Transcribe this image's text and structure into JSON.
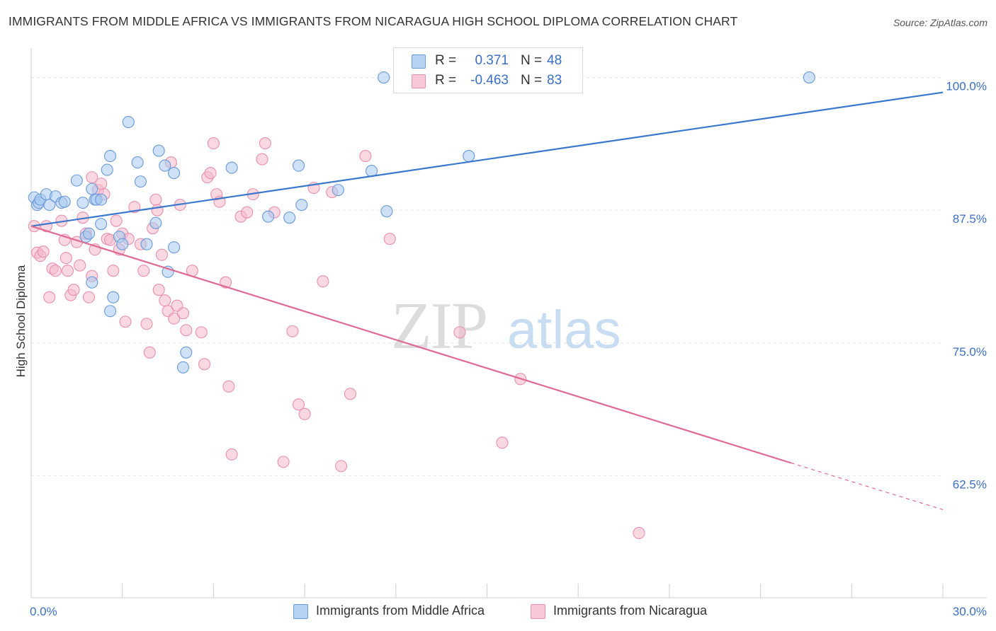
{
  "title": "IMMIGRANTS FROM MIDDLE AFRICA VS IMMIGRANTS FROM NICARAGUA HIGH SCHOOL DIPLOMA CORRELATION CHART",
  "source": "Source: ZipAtlas.com",
  "watermark": {
    "zip": "ZIP",
    "atlas": "atlas"
  },
  "legend": {
    "blue": {
      "r_label": "R =",
      "r_value": "0.371",
      "n_label": "N =",
      "n_value": "48"
    },
    "pink": {
      "r_label": "R =",
      "r_value": "-0.463",
      "n_label": "N =",
      "n_value": "83"
    }
  },
  "bottom_legend": {
    "blue": "Immigrants from Middle Africa",
    "pink": "Immigrants from Nicaragua"
  },
  "colors": {
    "blue_fill": "#a8c8f0",
    "blue_stroke": "#6a9ad8",
    "blue_line": "#3a78cc",
    "pink_fill": "#f4b8cb",
    "pink_stroke": "#e890ae",
    "pink_line": "#e06a95",
    "axis_text": "#3b6fc6",
    "grid": "#e6e6e6"
  },
  "chart_data": {
    "type": "scatter",
    "title": "IMMIGRANTS FROM MIDDLE AFRICA VS IMMIGRANTS FROM NICARAGUA HIGH SCHOOL DIPLOMA CORRELATION CHART",
    "xlabel": "",
    "ylabel": "High School Diploma",
    "xlim": [
      0,
      30
    ],
    "ylim": [
      51,
      102.5
    ],
    "x_tick_labels": [
      "0.0%",
      "30.0%"
    ],
    "y_ticks": [
      62.5,
      75.0,
      87.5,
      100.0
    ],
    "y_tick_labels": [
      "62.5%",
      "75.0%",
      "87.5%",
      "100.0%"
    ],
    "grid": true,
    "legend_position": "top-center",
    "series": [
      {
        "name": "Immigrants from Middle Africa",
        "color": "#6a9ad8",
        "r": 0.371,
        "n": 48,
        "trend": {
          "x": [
            0,
            30
          ],
          "y": [
            86.0,
            98.6
          ]
        },
        "points": [
          [
            0.1,
            88.7
          ],
          [
            0.2,
            88.0
          ],
          [
            0.25,
            88.2
          ],
          [
            0.3,
            88.5
          ],
          [
            0.5,
            89.0
          ],
          [
            0.6,
            88.0
          ],
          [
            0.8,
            88.8
          ],
          [
            1.0,
            88.2
          ],
          [
            1.1,
            88.3
          ],
          [
            1.5,
            90.3
          ],
          [
            1.7,
            88.2
          ],
          [
            2.0,
            89.5
          ],
          [
            2.1,
            88.5
          ],
          [
            2.15,
            88.5
          ],
          [
            2.3,
            88.5
          ],
          [
            1.8,
            85.0
          ],
          [
            1.9,
            85.3
          ],
          [
            2.3,
            86.2
          ],
          [
            2.5,
            91.3
          ],
          [
            2.6,
            92.6
          ],
          [
            2.9,
            85.0
          ],
          [
            3.2,
            95.8
          ],
          [
            3.5,
            92.0
          ],
          [
            3.6,
            90.2
          ],
          [
            3.8,
            84.3
          ],
          [
            4.1,
            86.3
          ],
          [
            4.2,
            93.1
          ],
          [
            4.4,
            91.7
          ],
          [
            4.5,
            81.7
          ],
          [
            4.7,
            91.0
          ],
          [
            4.7,
            84.0
          ],
          [
            5.0,
            72.7
          ],
          [
            5.1,
            74.1
          ],
          [
            2.0,
            80.7
          ],
          [
            2.6,
            78.0
          ],
          [
            2.7,
            79.3
          ],
          [
            3.0,
            84.3
          ],
          [
            6.6,
            91.5
          ],
          [
            7.8,
            86.9
          ],
          [
            8.5,
            86.8
          ],
          [
            8.8,
            91.7
          ],
          [
            8.9,
            88.0
          ],
          [
            10.1,
            89.4
          ],
          [
            11.2,
            91.2
          ],
          [
            11.7,
            87.4
          ],
          [
            14.4,
            92.6
          ],
          [
            11.6,
            100.0
          ],
          [
            25.6,
            100.0
          ]
        ]
      },
      {
        "name": "Immigrants from Nicaragua",
        "color": "#e890ae",
        "r": -0.463,
        "n": 83,
        "trend": {
          "x": [
            0,
            25
          ],
          "y": [
            86.0,
            63.7
          ]
        },
        "trend_dashed": {
          "x": [
            25,
            30
          ],
          "y": [
            63.7,
            59.3
          ]
        },
        "points": [
          [
            0.1,
            86.0
          ],
          [
            0.2,
            83.5
          ],
          [
            0.3,
            83.2
          ],
          [
            0.4,
            83.6
          ],
          [
            0.5,
            86.0
          ],
          [
            0.6,
            79.3
          ],
          [
            0.7,
            82.0
          ],
          [
            0.8,
            81.8
          ],
          [
            1.0,
            86.5
          ],
          [
            1.1,
            84.7
          ],
          [
            1.15,
            83.0
          ],
          [
            1.2,
            81.8
          ],
          [
            1.3,
            79.5
          ],
          [
            1.4,
            80.0
          ],
          [
            1.5,
            84.5
          ],
          [
            1.6,
            82.3
          ],
          [
            1.7,
            86.8
          ],
          [
            1.8,
            85.3
          ],
          [
            1.9,
            79.3
          ],
          [
            2.0,
            81.3
          ],
          [
            2.1,
            83.8
          ],
          [
            2.2,
            89.4
          ],
          [
            2.3,
            90.0
          ],
          [
            2.4,
            89.0
          ],
          [
            2.5,
            84.8
          ],
          [
            2.6,
            84.7
          ],
          [
            2.7,
            81.8
          ],
          [
            2.8,
            86.5
          ],
          [
            2.9,
            83.8
          ],
          [
            3.0,
            85.3
          ],
          [
            3.1,
            77.0
          ],
          [
            3.2,
            84.8
          ],
          [
            3.4,
            87.8
          ],
          [
            3.6,
            84.3
          ],
          [
            3.7,
            81.8
          ],
          [
            3.8,
            76.8
          ],
          [
            3.9,
            74.1
          ],
          [
            4.0,
            85.8
          ],
          [
            4.1,
            88.5
          ],
          [
            4.15,
            87.5
          ],
          [
            4.2,
            80.0
          ],
          [
            4.3,
            83.3
          ],
          [
            4.4,
            79.0
          ],
          [
            4.5,
            78.0
          ],
          [
            4.6,
            92.0
          ],
          [
            4.7,
            77.3
          ],
          [
            4.8,
            78.5
          ],
          [
            4.9,
            88.0
          ],
          [
            5.0,
            77.8
          ],
          [
            5.1,
            76.2
          ],
          [
            5.3,
            81.8
          ],
          [
            5.6,
            76.0
          ],
          [
            5.7,
            73.0
          ],
          [
            5.8,
            90.6
          ],
          [
            5.9,
            91.0
          ],
          [
            6.0,
            93.8
          ],
          [
            6.1,
            89.0
          ],
          [
            6.2,
            88.3
          ],
          [
            6.4,
            80.7
          ],
          [
            6.5,
            70.9
          ],
          [
            6.6,
            64.5
          ],
          [
            6.9,
            86.9
          ],
          [
            7.1,
            87.3
          ],
          [
            7.3,
            89.0
          ],
          [
            7.6,
            92.3
          ],
          [
            7.7,
            93.8
          ],
          [
            8.0,
            87.3
          ],
          [
            8.3,
            63.8
          ],
          [
            8.6,
            76.1
          ],
          [
            8.8,
            69.2
          ],
          [
            9.0,
            68.3
          ],
          [
            9.3,
            89.6
          ],
          [
            9.6,
            80.8
          ],
          [
            9.9,
            89.2
          ],
          [
            10.2,
            63.4
          ],
          [
            10.5,
            70.2
          ],
          [
            11.0,
            92.6
          ],
          [
            11.8,
            84.8
          ],
          [
            14.1,
            76.0
          ],
          [
            15.5,
            65.6
          ],
          [
            16.1,
            71.6
          ],
          [
            20.0,
            57.1
          ],
          [
            2.0,
            90.6
          ]
        ]
      }
    ]
  }
}
